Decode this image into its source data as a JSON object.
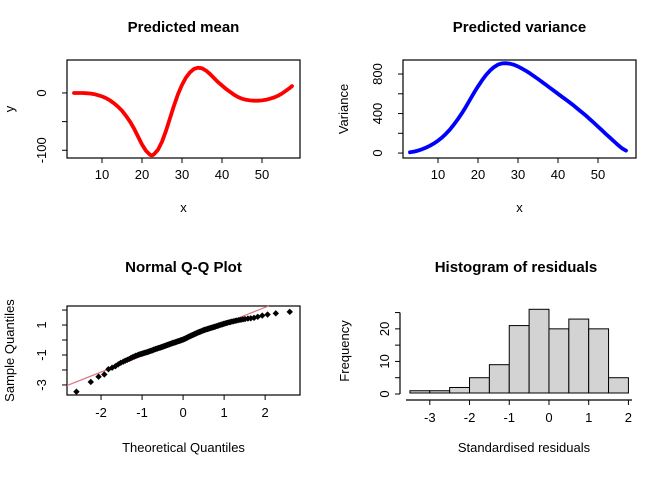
{
  "window": {
    "background": "#ffffff"
  },
  "chart_data": [
    {
      "type": "line",
      "title": "Predicted mean",
      "xlabel": "x",
      "ylabel": "y",
      "line_color": "#ff0000",
      "line_width": 3.8,
      "xlim": [
        1.25,
        59.5
      ],
      "ylim": [
        -113.5,
        57.5
      ],
      "xticks": [
        10,
        20,
        30,
        40,
        50
      ],
      "xtick_labels": [
        "10",
        "20",
        "30",
        "40",
        "50"
      ],
      "yticks": [
        -100,
        -50,
        0
      ],
      "ytick_labels": [
        "-100",
        "",
        "0"
      ],
      "points": [
        [
          3,
          0
        ],
        [
          4,
          0
        ],
        [
          5,
          0
        ],
        [
          6,
          -0.5
        ],
        [
          7,
          -1
        ],
        [
          8,
          -2
        ],
        [
          9,
          -4
        ],
        [
          10,
          -6
        ],
        [
          11,
          -9
        ],
        [
          12,
          -13
        ],
        [
          13,
          -18
        ],
        [
          14,
          -24
        ],
        [
          15,
          -31
        ],
        [
          16,
          -40
        ],
        [
          17,
          -50
        ],
        [
          18,
          -62
        ],
        [
          19,
          -76
        ],
        [
          20,
          -90
        ],
        [
          21,
          -101
        ],
        [
          22,
          -108
        ],
        [
          22.5,
          -109
        ],
        [
          23,
          -107
        ],
        [
          24,
          -99
        ],
        [
          25,
          -85
        ],
        [
          26,
          -66
        ],
        [
          27,
          -44
        ],
        [
          28,
          -22
        ],
        [
          29,
          -2
        ],
        [
          30,
          14
        ],
        [
          31,
          27
        ],
        [
          32,
          36
        ],
        [
          33,
          42
        ],
        [
          34,
          44
        ],
        [
          35,
          43
        ],
        [
          36,
          39
        ],
        [
          37,
          33
        ],
        [
          38,
          26
        ],
        [
          39,
          19
        ],
        [
          40,
          13
        ],
        [
          41,
          7
        ],
        [
          42,
          2
        ],
        [
          43,
          -3
        ],
        [
          44,
          -7
        ],
        [
          45,
          -10
        ],
        [
          46,
          -12
        ],
        [
          47,
          -13
        ],
        [
          48,
          -13.5
        ],
        [
          49,
          -13.5
        ],
        [
          50,
          -13
        ],
        [
          51,
          -12
        ],
        [
          52,
          -10
        ],
        [
          53,
          -8
        ],
        [
          54,
          -5
        ],
        [
          55,
          -1
        ],
        [
          56,
          4
        ],
        [
          57,
          9
        ],
        [
          57.5,
          12
        ]
      ]
    },
    {
      "type": "line",
      "title": "Predicted variance",
      "xlabel": "x",
      "ylabel": "Variance",
      "line_color": "#0000ff",
      "line_width": 3.8,
      "xlim": [
        1.25,
        59.5
      ],
      "ylim": [
        -50,
        942
      ],
      "xticks": [
        10,
        20,
        30,
        40,
        50
      ],
      "xtick_labels": [
        "10",
        "20",
        "30",
        "40",
        "50"
      ],
      "yticks": [
        0,
        200,
        400,
        600,
        800
      ],
      "ytick_labels": [
        "0",
        "",
        "400",
        "",
        "800"
      ],
      "points": [
        [
          3,
          8
        ],
        [
          4,
          15
        ],
        [
          5,
          25
        ],
        [
          6,
          38
        ],
        [
          7,
          55
        ],
        [
          8,
          75
        ],
        [
          9,
          98
        ],
        [
          10,
          125
        ],
        [
          11,
          158
        ],
        [
          12,
          196
        ],
        [
          13,
          240
        ],
        [
          14,
          290
        ],
        [
          15,
          345
        ],
        [
          16,
          405
        ],
        [
          17,
          470
        ],
        [
          18,
          540
        ],
        [
          19,
          610
        ],
        [
          20,
          675
        ],
        [
          21,
          735
        ],
        [
          22,
          790
        ],
        [
          23,
          835
        ],
        [
          24,
          870
        ],
        [
          25,
          895
        ],
        [
          26,
          908
        ],
        [
          27,
          910
        ],
        [
          28,
          905
        ],
        [
          29,
          893
        ],
        [
          30,
          876
        ],
        [
          31,
          855
        ],
        [
          32,
          832
        ],
        [
          33,
          806
        ],
        [
          34,
          778
        ],
        [
          35,
          750
        ],
        [
          36,
          720
        ],
        [
          37,
          690
        ],
        [
          38,
          660
        ],
        [
          39,
          630
        ],
        [
          40,
          600
        ],
        [
          41,
          570
        ],
        [
          42,
          540
        ],
        [
          43,
          510
        ],
        [
          44,
          478
        ],
        [
          45,
          445
        ],
        [
          46,
          412
        ],
        [
          47,
          378
        ],
        [
          48,
          342
        ],
        [
          49,
          305
        ],
        [
          50,
          268
        ],
        [
          51,
          230
        ],
        [
          52,
          192
        ],
        [
          53,
          155
        ],
        [
          54,
          118
        ],
        [
          55,
          82
        ],
        [
          56,
          48
        ],
        [
          57,
          25
        ]
      ]
    },
    {
      "type": "scatter",
      "title": "Normal Q-Q Plot",
      "xlabel": "Theoretical Quantiles",
      "ylabel": "Sample Quantiles",
      "point_color": "#000000",
      "point_size": 3.2,
      "ref_line": {
        "slope": 1.08,
        "intercept": 0.02,
        "color": "#e0707f",
        "width": 1.2
      },
      "xlim": [
        -2.83,
        2.85
      ],
      "ylim": [
        -3.67,
        2.27
      ],
      "xticks": [
        -2,
        -1,
        0,
        1,
        2
      ],
      "xtick_labels": [
        "-2",
        "-1",
        "0",
        "1",
        "2"
      ],
      "yticks": [
        -3,
        -2,
        -1,
        0,
        1,
        2
      ],
      "ytick_labels": [
        "-3",
        "",
        "-1",
        "",
        "1",
        ""
      ],
      "points": [
        [
          -2.6,
          -3.45
        ],
        [
          -2.25,
          -2.8
        ],
        [
          -2.06,
          -2.45
        ],
        [
          -1.92,
          -2.3
        ],
        [
          -1.82,
          -1.95
        ],
        [
          -1.73,
          -1.85
        ],
        [
          -1.65,
          -1.75
        ],
        [
          -1.58,
          -1.62
        ],
        [
          -1.52,
          -1.52
        ],
        [
          -1.46,
          -1.45
        ],
        [
          -1.41,
          -1.38
        ],
        [
          -1.36,
          -1.32
        ],
        [
          -1.31,
          -1.26
        ],
        [
          -1.27,
          -1.2
        ],
        [
          -1.23,
          -1.15
        ],
        [
          -1.19,
          -1.1
        ],
        [
          -1.15,
          -1.05
        ],
        [
          -1.11,
          -1.01
        ],
        [
          -1.08,
          -0.98
        ],
        [
          -1.05,
          -0.95
        ],
        [
          -1.02,
          -0.93
        ],
        [
          -0.99,
          -0.9
        ],
        [
          -0.96,
          -0.88
        ],
        [
          -0.93,
          -0.85
        ],
        [
          -0.9,
          -0.83
        ],
        [
          -0.87,
          -0.8
        ],
        [
          -0.84,
          -0.78
        ],
        [
          -0.82,
          -0.75
        ],
        [
          -0.79,
          -0.73
        ],
        [
          -0.76,
          -0.7
        ],
        [
          -0.74,
          -0.68
        ],
        [
          -0.72,
          -0.65
        ],
        [
          -0.69,
          -0.63
        ],
        [
          -0.67,
          -0.6
        ],
        [
          -0.64,
          -0.58
        ],
        [
          -0.62,
          -0.56
        ],
        [
          -0.6,
          -0.54
        ],
        [
          -0.58,
          -0.52
        ],
        [
          -0.55,
          -0.5
        ],
        [
          -0.53,
          -0.48
        ],
        [
          -0.51,
          -0.46
        ],
        [
          -0.49,
          -0.44
        ],
        [
          -0.47,
          -0.42
        ],
        [
          -0.45,
          -0.4
        ],
        [
          -0.43,
          -0.38
        ],
        [
          -0.41,
          -0.36
        ],
        [
          -0.39,
          -0.34
        ],
        [
          -0.37,
          -0.32
        ],
        [
          -0.35,
          -0.3
        ],
        [
          -0.33,
          -0.28
        ],
        [
          -0.31,
          -0.26
        ],
        [
          -0.29,
          -0.24
        ],
        [
          -0.27,
          -0.22
        ],
        [
          -0.25,
          -0.2
        ],
        [
          -0.23,
          -0.18
        ],
        [
          -0.21,
          -0.17
        ],
        [
          -0.19,
          -0.15
        ],
        [
          -0.17,
          -0.13
        ],
        [
          -0.15,
          -0.11
        ],
        [
          -0.13,
          -0.09
        ],
        [
          -0.11,
          -0.07
        ],
        [
          -0.09,
          -0.06
        ],
        [
          -0.07,
          -0.04
        ],
        [
          -0.06,
          -0.02
        ],
        [
          -0.04,
          -0.01
        ],
        [
          -0.02,
          0.01
        ],
        [
          0.0,
          0.03
        ],
        [
          0.02,
          0.06
        ],
        [
          0.04,
          0.08
        ],
        [
          0.06,
          0.11
        ],
        [
          0.08,
          0.13
        ],
        [
          0.1,
          0.16
        ],
        [
          0.11,
          0.18
        ],
        [
          0.13,
          0.21
        ],
        [
          0.15,
          0.23
        ],
        [
          0.17,
          0.26
        ],
        [
          0.19,
          0.28
        ],
        [
          0.21,
          0.31
        ],
        [
          0.23,
          0.33
        ],
        [
          0.25,
          0.36
        ],
        [
          0.27,
          0.38
        ],
        [
          0.29,
          0.41
        ],
        [
          0.31,
          0.43
        ],
        [
          0.33,
          0.46
        ],
        [
          0.35,
          0.48
        ],
        [
          0.37,
          0.51
        ],
        [
          0.39,
          0.53
        ],
        [
          0.41,
          0.55
        ],
        [
          0.43,
          0.57
        ],
        [
          0.45,
          0.59
        ],
        [
          0.47,
          0.62
        ],
        [
          0.49,
          0.64
        ],
        [
          0.51,
          0.66
        ],
        [
          0.53,
          0.68
        ],
        [
          0.55,
          0.7
        ],
        [
          0.58,
          0.72
        ],
        [
          0.6,
          0.74
        ],
        [
          0.62,
          0.76
        ],
        [
          0.65,
          0.78
        ],
        [
          0.67,
          0.8
        ],
        [
          0.69,
          0.82
        ],
        [
          0.72,
          0.84
        ],
        [
          0.74,
          0.86
        ],
        [
          0.77,
          0.88
        ],
        [
          0.79,
          0.9
        ],
        [
          0.82,
          0.93
        ],
        [
          0.85,
          0.95
        ],
        [
          0.87,
          0.98
        ],
        [
          0.9,
          1.0
        ],
        [
          0.93,
          1.03
        ],
        [
          0.96,
          1.05
        ],
        [
          0.99,
          1.08
        ],
        [
          1.02,
          1.1
        ],
        [
          1.05,
          1.13
        ],
        [
          1.08,
          1.15
        ],
        [
          1.12,
          1.18
        ],
        [
          1.15,
          1.2
        ],
        [
          1.19,
          1.23
        ],
        [
          1.23,
          1.25
        ],
        [
          1.27,
          1.28
        ],
        [
          1.31,
          1.3
        ],
        [
          1.36,
          1.33
        ],
        [
          1.41,
          1.35
        ],
        [
          1.46,
          1.38
        ],
        [
          1.51,
          1.4
        ],
        [
          1.58,
          1.43
        ],
        [
          1.65,
          1.45
        ],
        [
          1.73,
          1.48
        ],
        [
          1.82,
          1.55
        ],
        [
          1.93,
          1.63
        ],
        [
          2.06,
          1.7
        ],
        [
          2.26,
          1.78
        ],
        [
          2.6,
          1.88
        ]
      ]
    },
    {
      "type": "histogram",
      "title": "Histogram of residuals",
      "xlabel": "Standardised residuals",
      "ylabel": "Frequency",
      "bar_fill": "#d3d3d3",
      "bar_stroke": "#000000",
      "bin_start": -3.5,
      "bin_width": 0.5,
      "counts": [
        1,
        1,
        2,
        5,
        9,
        21,
        26,
        20,
        23,
        20,
        5
      ],
      "xlim": [
        -3.75,
        2.09
      ],
      "ylim": [
        0,
        26.4
      ],
      "xticks": [
        -3,
        -2,
        -1,
        0,
        1,
        2
      ],
      "xtick_labels": [
        "-3",
        "-2",
        "-1",
        "0",
        "1",
        "2"
      ],
      "yticks": [
        0,
        5,
        10,
        15,
        20,
        25
      ],
      "ytick_labels": [
        "0",
        "",
        "10",
        "",
        "20",
        ""
      ]
    }
  ]
}
